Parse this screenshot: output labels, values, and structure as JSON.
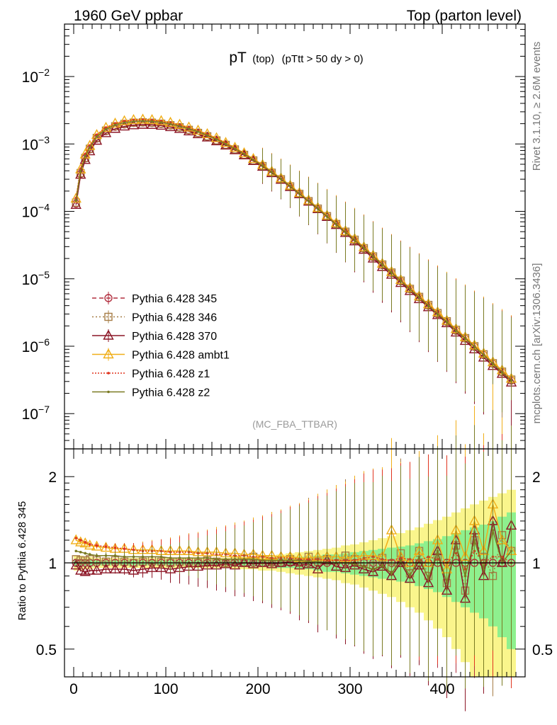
{
  "header": {
    "left": "1960 GeV ppbar",
    "right": "Top (parton level)"
  },
  "plot_title": {
    "main": "pT",
    "sub1": "(top)",
    "sub2": "(pTtt > 50 dy > 0)"
  },
  "side_labels": {
    "rivet": "Rivet 3.1.10, ≥ 2.6M events",
    "mcplots": "mcplots.cern.ch [arXiv:1306.3436]"
  },
  "analysis_tag": "(MC_FBA_TTBAR)",
  "ratio_ylabel": "Ratio to Pythia 6.428 345",
  "colors": {
    "p345": "#b22e3e",
    "p346": "#a67c45",
    "p370": "#8c1626",
    "ambt1": "#f0ae18",
    "z1": "#e0341e",
    "z2": "#7a7a22",
    "band_inner": "#8ef08e",
    "band_outer": "#faf58c"
  },
  "legend": [
    {
      "label": "Pythia 6.428 345",
      "color": "#b22e3e",
      "dash": "6,4",
      "marker": "circle"
    },
    {
      "label": "Pythia 6.428 346",
      "color": "#a67c45",
      "dash": "2,3",
      "marker": "square"
    },
    {
      "label": "Pythia 6.428 370",
      "color": "#8c1626",
      "dash": "",
      "marker": "triangle"
    },
    {
      "label": "Pythia 6.428 ambt1",
      "color": "#f0ae18",
      "dash": "",
      "marker": "triangle"
    },
    {
      "label": "Pythia 6.428 z1",
      "color": "#e0341e",
      "dash": "2,2",
      "marker": "dot"
    },
    {
      "label": "Pythia 6.428 z2",
      "color": "#7a7a22",
      "dash": "",
      "marker": "dot"
    }
  ],
  "chart_data": [
    {
      "type": "line",
      "panel": "main",
      "yscale": "log",
      "xlim": [
        -10,
        490
      ],
      "ylim": [
        3e-08,
        0.06
      ],
      "y_ticks": [
        {
          "value": 0.01,
          "base": "10",
          "exp": "−2"
        },
        {
          "value": 0.001,
          "base": "10",
          "exp": "−3"
        },
        {
          "value": 0.0001,
          "base": "10",
          "exp": "−4"
        },
        {
          "value": 1e-05,
          "base": "10",
          "exp": "−5"
        },
        {
          "value": 1e-06,
          "base": "10",
          "exp": "−6"
        },
        {
          "value": 1e-07,
          "base": "10",
          "exp": "−7"
        }
      ],
      "x": [
        2.5,
        7.5,
        12.5,
        17.5,
        25,
        35,
        45,
        55,
        65,
        75,
        85,
        95,
        105,
        115,
        125,
        135,
        145,
        155,
        165,
        175,
        185,
        195,
        205,
        215,
        225,
        235,
        245,
        255,
        265,
        275,
        285,
        295,
        305,
        315,
        325,
        335,
        345,
        355,
        365,
        375,
        385,
        395,
        405,
        415,
        425,
        435,
        445,
        455,
        465,
        475
      ],
      "series": [
        {
          "name": "Pythia 6.428 345",
          "values": [
            0.00013,
            0.00036,
            0.00061,
            0.00083,
            0.0012,
            0.00155,
            0.0018,
            0.00195,
            0.00205,
            0.00208,
            0.00205,
            0.00198,
            0.00188,
            0.00175,
            0.0016,
            0.00145,
            0.00128,
            0.00112,
            0.00096,
            0.00082,
            0.00068,
            0.00056,
            0.00046,
            0.00037,
            0.000295,
            0.00023,
            0.00018,
            0.00014,
            0.000108,
            8.3e-05,
            6.4e-05,
            4.9e-05,
            3.7e-05,
            2.8e-05,
            2.1e-05,
            1.6e-05,
            1.22e-05,
            9.2e-06,
            7e-06,
            5.3e-06,
            4e-06,
            3e-06,
            2.3e-06,
            1.7e-06,
            1.3e-06,
            9.8e-07,
            7.4e-07,
            5.5e-07,
            4.1e-07,
            3.1e-07
          ]
        },
        {
          "name": "Pythia 6.428 346",
          "values": [
            0.000135,
            0.00037,
            0.00062,
            0.00085,
            0.00123,
            0.00158,
            0.00183,
            0.00198,
            0.00207,
            0.0021,
            0.00207,
            0.002,
            0.0019,
            0.00177,
            0.00162,
            0.00146,
            0.0013,
            0.00113,
            0.00097,
            0.00083,
            0.00069,
            0.00057,
            0.00047,
            0.000375,
            0.0003,
            0.000235,
            0.000182,
            0.000142,
            0.00011,
            8.5e-05,
            6.5e-05,
            5e-05,
            3.8e-05,
            2.85e-05,
            2.15e-05,
            1.63e-05,
            1.24e-05,
            9.4e-06,
            7.1e-06,
            5.4e-06,
            4.1e-06,
            3.1e-06,
            2.35e-06,
            1.75e-06,
            1.32e-06,
            1e-06,
            7.6e-07,
            5.6e-07,
            4.2e-07,
            3.2e-07
          ]
        },
        {
          "name": "Pythia 6.428 370",
          "values": [
            0.000125,
            0.00035,
            0.00058,
            0.00078,
            0.00112,
            0.00145,
            0.00168,
            0.00182,
            0.0019,
            0.00193,
            0.00192,
            0.00187,
            0.00178,
            0.00167,
            0.00154,
            0.0014,
            0.00125,
            0.0011,
            0.00095,
            0.00081,
            0.00068,
            0.00056,
            0.00046,
            0.00037,
            0.000295,
            0.00023,
            0.00018,
            0.00014,
            0.000108,
            8.3e-05,
            6.3e-05,
            4.8e-05,
            3.6e-05,
            2.7e-05,
            2e-05,
            1.5e-05,
            1.15e-05,
            8.7e-06,
            6.6e-06,
            5e-06,
            3.8e-06,
            2.9e-06,
            2.2e-06,
            1.6e-06,
            1.2e-06,
            9e-07,
            6.8e-07,
            5.1e-07,
            3.9e-07,
            2.9e-07
          ]
        },
        {
          "name": "Pythia 6.428 ambt1",
          "values": [
            0.000155,
            0.00042,
            0.0007,
            0.00094,
            0.00136,
            0.00174,
            0.00201,
            0.00218,
            0.00227,
            0.0023,
            0.00227,
            0.00219,
            0.00207,
            0.00193,
            0.00176,
            0.00158,
            0.0014,
            0.00122,
            0.00104,
            0.00088,
            0.00073,
            0.0006,
            0.00049,
            0.00039,
            0.00031,
            0.000242,
            0.000188,
            0.000146,
            0.000113,
            8.7e-05,
            6.7e-05,
            5.1e-05,
            3.9e-05,
            2.95e-05,
            2.22e-05,
            1.68e-05,
            1.27e-05,
            9.6e-06,
            7.3e-06,
            5.5e-06,
            4.2e-06,
            3.2e-06,
            2.4e-06,
            1.8e-06,
            1.36e-06,
            1.03e-06,
            7.8e-07,
            5.8e-07,
            4.4e-07,
            3.3e-07
          ]
        },
        {
          "name": "Pythia 6.428 z1",
          "values": [
            0.000158,
            0.00043,
            0.00071,
            0.00095,
            0.00137,
            0.00175,
            0.00202,
            0.00218,
            0.00226,
            0.00228,
            0.00225,
            0.00217,
            0.00205,
            0.00191,
            0.00174,
            0.00156,
            0.00138,
            0.0012,
            0.00103,
            0.00087,
            0.00072,
            0.00059,
            0.00048,
            0.000385,
            0.000305,
            0.000238,
            0.000185,
            0.000144,
            0.000111,
            8.5e-05,
            6.5e-05,
            5e-05,
            3.8e-05,
            2.9e-05,
            2.2e-05,
            1.65e-05,
            1.25e-05,
            9.5e-06,
            7.2e-06,
            5.4e-06,
            4.1e-06,
            3.1e-06,
            2.3e-06,
            1.75e-06,
            1.32e-06,
            1e-06,
            7.5e-07,
            5.6e-07,
            4.2e-07,
            3.2e-07
          ]
        },
        {
          "name": "Pythia 6.428 z2",
          "values": [
            0.000145,
            0.000395,
            0.00066,
            0.00089,
            0.00129,
            0.00166,
            0.00192,
            0.00207,
            0.00216,
            0.00219,
            0.00216,
            0.00209,
            0.00198,
            0.00184,
            0.00168,
            0.00152,
            0.00134,
            0.00117,
            0.001,
            0.00085,
            0.00071,
            0.00058,
            0.000475,
            0.00038,
            0.000302,
            0.000236,
            0.000183,
            0.000142,
            0.00011,
            8.4e-05,
            6.4e-05,
            4.9e-05,
            3.75e-05,
            2.85e-05,
            2.15e-05,
            1.62e-05,
            1.23e-05,
            9.3e-06,
            7e-06,
            5.3e-06,
            4e-06,
            3e-06,
            2.3e-06,
            1.7e-06,
            1.3e-06,
            9.8e-07,
            7.4e-07,
            5.5e-07,
            4.1e-07,
            3.1e-07
          ]
        }
      ]
    },
    {
      "type": "line",
      "panel": "ratio",
      "yscale": "log",
      "xlim": [
        -10,
        490
      ],
      "ylim": [
        0.4,
        2.5
      ],
      "ylabel": "Ratio to Pythia 6.428 345",
      "y_ticks": [
        {
          "value": 2,
          "label": "2"
        },
        {
          "value": 1,
          "label": "1"
        },
        {
          "value": 0.5,
          "label": "0.5"
        }
      ],
      "x_ticks": [
        {
          "value": 0,
          "label": "0"
        },
        {
          "value": 100,
          "label": "100"
        },
        {
          "value": 200,
          "label": "200"
        },
        {
          "value": 300,
          "label": "300"
        },
        {
          "value": 400,
          "label": "400"
        }
      ],
      "x": [
        2.5,
        7.5,
        12.5,
        17.5,
        25,
        35,
        45,
        55,
        65,
        75,
        85,
        95,
        105,
        115,
        125,
        135,
        145,
        155,
        165,
        175,
        185,
        195,
        205,
        215,
        225,
        235,
        245,
        255,
        265,
        275,
        285,
        295,
        305,
        315,
        325,
        335,
        345,
        355,
        365,
        375,
        385,
        395,
        405,
        415,
        425,
        435,
        445,
        455,
        465,
        475
      ],
      "band_inner": [
        0.03,
        0.03,
        0.03,
        0.03,
        0.02,
        0.02,
        0.02,
        0.02,
        0.02,
        0.02,
        0.02,
        0.02,
        0.02,
        0.02,
        0.02,
        0.02,
        0.02,
        0.02,
        0.02,
        0.03,
        0.03,
        0.03,
        0.03,
        0.03,
        0.04,
        0.04,
        0.05,
        0.05,
        0.06,
        0.07,
        0.07,
        0.08,
        0.09,
        0.1,
        0.11,
        0.12,
        0.13,
        0.14,
        0.15,
        0.17,
        0.19,
        0.21,
        0.24,
        0.27,
        0.3,
        0.33,
        0.36,
        0.4,
        0.45,
        0.5
      ],
      "band_outer": [
        0.06,
        0.06,
        0.05,
        0.05,
        0.04,
        0.04,
        0.04,
        0.04,
        0.04,
        0.04,
        0.04,
        0.04,
        0.04,
        0.04,
        0.04,
        0.04,
        0.04,
        0.04,
        0.04,
        0.05,
        0.05,
        0.05,
        0.06,
        0.06,
        0.07,
        0.08,
        0.09,
        0.1,
        0.11,
        0.12,
        0.13,
        0.15,
        0.16,
        0.18,
        0.2,
        0.22,
        0.24,
        0.27,
        0.3,
        0.33,
        0.37,
        0.41,
        0.45,
        0.5,
        0.55,
        0.6,
        0.65,
        0.7,
        0.75,
        0.8
      ],
      "series": [
        {
          "name": "Pythia 6.428 345",
          "values": [
            1,
            1,
            1,
            1,
            1,
            1,
            1,
            1,
            1,
            1,
            1,
            1,
            1,
            1,
            1,
            1,
            1,
            1,
            1,
            1,
            1,
            1,
            1,
            1,
            1,
            1,
            1,
            1,
            1,
            1,
            1,
            1,
            1,
            1,
            1,
            1,
            1,
            1,
            1,
            1,
            1,
            1,
            1,
            1,
            1,
            1,
            1,
            1,
            1,
            1
          ]
        },
        {
          "name": "Pythia 6.428 346",
          "values": [
            1.03,
            1.02,
            1.02,
            1.03,
            1.02,
            1.01,
            1.02,
            1.01,
            1.0,
            1.01,
            1.02,
            1.01,
            1.0,
            1.01,
            1.01,
            1.0,
            1.02,
            1.01,
            1.0,
            1.02,
            1.03,
            1.05,
            1.02,
            1.01,
            1.02,
            1.03,
            1.0,
            1.05,
            1.01,
            1.03,
            1.02,
            1.06,
            1.03,
            1.0,
            0.98,
            1.04,
            0.96,
            1.08,
            0.92,
            1.1,
            0.9,
            1.05,
            0.85,
            1.15,
            0.8,
            1.2,
            1.05,
            0.9,
            1.25,
            1.1
          ]
        },
        {
          "name": "Pythia 6.428 370",
          "values": [
            0.98,
            0.94,
            0.93,
            0.94,
            0.94,
            0.95,
            0.95,
            0.95,
            0.94,
            0.95,
            0.96,
            0.96,
            0.95,
            0.96,
            0.97,
            0.97,
            0.98,
            0.98,
            0.99,
            0.98,
            1.0,
            0.99,
            1.0,
            0.99,
            1.0,
            1.01,
            0.98,
            0.99,
            0.95,
            1.02,
            0.97,
            0.96,
            0.98,
            0.95,
            0.93,
            0.97,
            0.9,
            1.0,
            0.88,
            0.98,
            0.85,
            1.1,
            0.8,
            1.2,
            0.75,
            1.3,
            0.9,
            1.4,
            1.0,
            1.35
          ]
        },
        {
          "name": "Pythia 6.428 ambt1",
          "values": [
            1.2,
            1.18,
            1.17,
            1.15,
            1.14,
            1.13,
            1.12,
            1.12,
            1.11,
            1.11,
            1.11,
            1.1,
            1.1,
            1.1,
            1.1,
            1.09,
            1.09,
            1.09,
            1.08,
            1.08,
            1.07,
            1.07,
            1.06,
            1.06,
            1.05,
            1.05,
            1.04,
            1.04,
            1.05,
            1.05,
            1.05,
            1.04,
            1.05,
            1.06,
            1.06,
            1.05,
            1.3,
            1.05,
            1.0,
            1.1,
            1.0,
            1.2,
            0.95,
            1.3,
            1.05,
            1.4,
            1.1,
            1.6,
            1.2,
            1.1
          ]
        },
        {
          "name": "Pythia 6.428 z1",
          "values": [
            1.22,
            1.2,
            1.18,
            1.16,
            1.15,
            1.14,
            1.13,
            1.12,
            1.11,
            1.1,
            1.1,
            1.1,
            1.09,
            1.09,
            1.09,
            1.08,
            1.08,
            1.07,
            1.07,
            1.06,
            1.06,
            1.05,
            1.05,
            1.04,
            1.04,
            1.04,
            1.03,
            1.03,
            1.03,
            1.02,
            1.02,
            1.02,
            1.02,
            1.04,
            1.05,
            1.03,
            1.02,
            1.04,
            1.03,
            1.02,
            1.05,
            1.03,
            1.0,
            1.08,
            0.95,
            1.1,
            1.0,
            1.05,
            1.05,
            1.0
          ]
        },
        {
          "name": "Pythia 6.428 z2",
          "values": [
            1.1,
            1.09,
            1.08,
            1.07,
            1.06,
            1.06,
            1.06,
            1.05,
            1.05,
            1.05,
            1.05,
            1.05,
            1.04,
            1.04,
            1.04,
            1.04,
            1.04,
            1.03,
            1.03,
            1.03,
            1.03,
            1.03,
            1.02,
            1.02,
            1.02,
            1.02,
            1.02,
            1.01,
            1.01,
            1.0,
            1.0,
            1.0,
            0.99,
            0.97,
            0.95,
            0.98,
            0.92,
            1.02,
            0.9,
            1.05,
            0.88,
            1.1,
            0.85,
            1.15,
            0.9,
            1.2,
            0.95,
            1.3,
            1.0,
            1.1
          ]
        }
      ]
    }
  ]
}
